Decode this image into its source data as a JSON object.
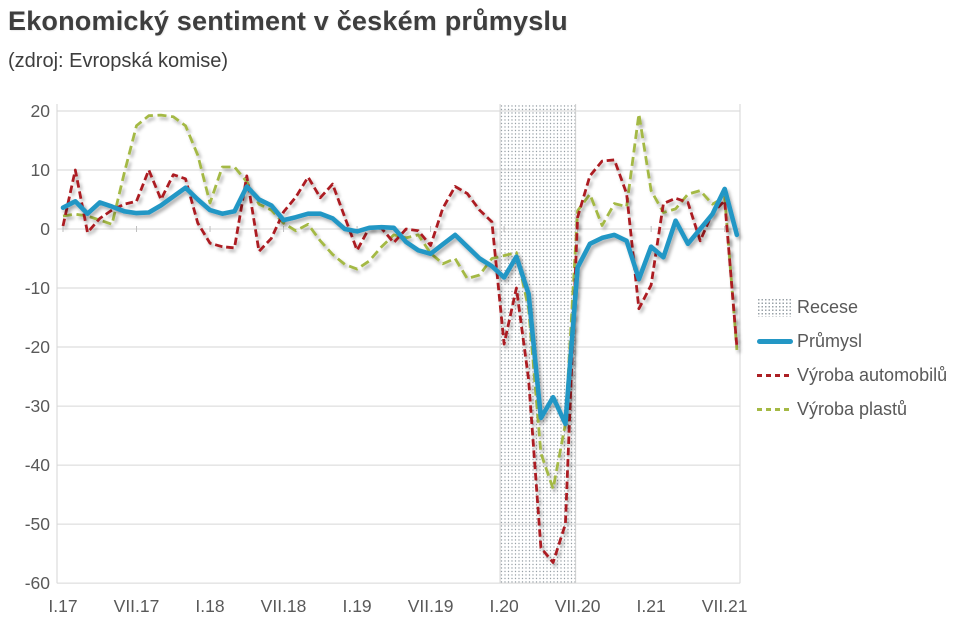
{
  "header": {
    "title": "Ekonomický sentiment v českém průmyslu",
    "subtitle": "(zdroj: Evropská komise)"
  },
  "chart_data": {
    "type": "line",
    "title": "Ekonomický sentiment v českém průmyslu",
    "subtitle": "(zdroj: Evropská komise)",
    "xlabel": "",
    "ylabel": "",
    "ylim": [
      -61,
      21
    ],
    "grid": true,
    "legend_position": "right",
    "x_tick_labels": [
      "I.17",
      "VII.17",
      "I.18",
      "VII.18",
      "I.19",
      "VII.19",
      "I.20",
      "VII.20",
      "I.21",
      "VII.21"
    ],
    "y_ticks": [
      20,
      10,
      0,
      -10,
      -20,
      -30,
      -40,
      -50,
      -60
    ],
    "colors": {
      "grid": "#d6d6d6",
      "axis_tick": "#bfbfbf",
      "tick_label": "#595959",
      "title_text": "#3e3e3e",
      "recession_dots": "#97a0a6",
      "recession_edge": "#cfcfcf"
    },
    "months": [
      "2017-01",
      "2017-02",
      "2017-03",
      "2017-04",
      "2017-05",
      "2017-06",
      "2017-07",
      "2017-08",
      "2017-09",
      "2017-10",
      "2017-11",
      "2017-12",
      "2018-01",
      "2018-02",
      "2018-03",
      "2018-04",
      "2018-05",
      "2018-06",
      "2018-07",
      "2018-08",
      "2018-09",
      "2018-10",
      "2018-11",
      "2018-12",
      "2019-01",
      "2019-02",
      "2019-03",
      "2019-04",
      "2019-05",
      "2019-06",
      "2019-07",
      "2019-08",
      "2019-09",
      "2019-10",
      "2019-11",
      "2019-12",
      "2020-01",
      "2020-02",
      "2020-03",
      "2020-04",
      "2020-05",
      "2020-06",
      "2020-07",
      "2020-08",
      "2020-09",
      "2020-10",
      "2020-11",
      "2020-12",
      "2021-01",
      "2021-02",
      "2021-03",
      "2021-04",
      "2021-05",
      "2021-06",
      "2021-07",
      "2021-08"
    ],
    "recession": {
      "label": "Recese",
      "start_month": "2020-01",
      "end_month": "2020-07",
      "pattern": "gray-dots"
    },
    "series": [
      {
        "name": "Průmysl",
        "color": "#2397c5",
        "line_style": "solid",
        "line_width": 4.6,
        "values": [
          3.6,
          4.7,
          2.6,
          4.5,
          3.8,
          3.0,
          2.7,
          2.8,
          4.0,
          5.5,
          7.0,
          5.0,
          3.2,
          2.6,
          3.0,
          7.2,
          5.0,
          4.0,
          1.5,
          2.0,
          2.6,
          2.6,
          1.8,
          0.0,
          -0.4,
          0.2,
          0.3,
          0.2,
          -2.2,
          -3.6,
          -4.2,
          -2.6,
          -1.0,
          -3.0,
          -5.0,
          -6.3,
          -8.2,
          -4.7,
          -11.0,
          -32.0,
          -28.5,
          -33.0,
          -6.5,
          -2.5,
          -1.5,
          -1.0,
          -2.0,
          -8.5,
          -3.0,
          -4.8,
          1.4,
          -2.5,
          0.0,
          2.5,
          6.8,
          -1.0
        ]
      },
      {
        "name": "Výroba automobilů",
        "color": "#ac1f24",
        "line_style": "dashed",
        "line_width": 2.8,
        "values": [
          0.5,
          10.0,
          -0.6,
          1.8,
          3.2,
          4.2,
          4.7,
          10.0,
          5.0,
          9.2,
          8.5,
          1.0,
          -2.4,
          -3.0,
          -3.2,
          9.0,
          -3.8,
          -1.6,
          2.9,
          5.4,
          8.8,
          5.3,
          7.6,
          2.0,
          -3.6,
          0.2,
          0.1,
          -2.3,
          0.0,
          -0.3,
          -2.8,
          3.5,
          7.2,
          6.0,
          3.2,
          1.2,
          -19.5,
          -10.0,
          -25.5,
          -54.0,
          -56.5,
          -50.0,
          2.0,
          9.0,
          11.5,
          11.7,
          6.0,
          -13.5,
          -9.5,
          4.3,
          5.2,
          4.5,
          -2.0,
          2.7,
          4.8,
          -20.0
        ]
      },
      {
        "name": "Výroba plastů",
        "color": "#a4b944",
        "line_style": "dashed",
        "line_width": 2.8,
        "values": [
          2.2,
          2.5,
          2.2,
          1.5,
          0.8,
          9.5,
          17.5,
          19.2,
          19.3,
          19.0,
          17.5,
          12.5,
          4.4,
          10.5,
          10.5,
          8.0,
          4.2,
          3.2,
          1.0,
          -0.3,
          0.8,
          -2.0,
          -4.3,
          -6.0,
          -6.8,
          -5.4,
          -3.0,
          -1.0,
          -1.5,
          -1.0,
          -4.1,
          -5.9,
          -5.0,
          -8.4,
          -7.8,
          -5.0,
          -4.5,
          -4.0,
          -13.5,
          -38.0,
          -44.0,
          -33.0,
          3.1,
          5.9,
          0.6,
          4.3,
          3.8,
          19.5,
          6.5,
          2.8,
          3.4,
          5.9,
          6.5,
          4.2,
          5.4,
          -20.5
        ]
      }
    ]
  },
  "legend": {
    "items": [
      {
        "label": "Recese",
        "swatch": "dotted-area"
      },
      {
        "label": "Průmysl",
        "swatch": "solid-line"
      },
      {
        "label": "Výroba automobilů",
        "swatch": "dashed-line"
      },
      {
        "label": "Výroba plastů",
        "swatch": "dashed-line"
      }
    ]
  }
}
